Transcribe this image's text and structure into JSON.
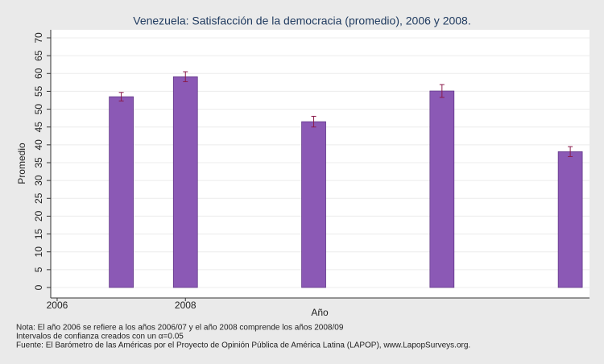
{
  "chart_data": {
    "type": "bar",
    "title": "Venezuela: Satisfacción de la democracia (promedio), 2006 y 2008.",
    "x_label": "Año",
    "y_label": "Promedio",
    "x": [
      2007,
      2008,
      2010,
      2012,
      2014
    ],
    "values": [
      53.5,
      59.1,
      46.5,
      55.1,
      38.1
    ],
    "errors": [
      1.2,
      1.4,
      1.5,
      1.8,
      1.4
    ],
    "color": "#8b59b5",
    "error_color": "#8b1a4a",
    "xlim": [
      2005.9,
      2014.3
    ],
    "xticks": [
      2006,
      2008
    ],
    "ylim": [
      0,
      70
    ],
    "yticks": [
      0,
      5,
      10,
      15,
      20,
      25,
      30,
      35,
      40,
      45,
      50,
      55,
      60,
      65,
      70
    ],
    "grid": true,
    "notes": [
      "Nota: El año 2006 se refiere a los años 2006/07 y el año 2008 comprende los años 2008/09",
      "Intervalos de confianza creados con un α=0.05",
      "Fuente: El Barómetro de las Américas por el Proyecto de Opinión Pública de América Latina (LAPOP), www.LapopSurveys.org."
    ]
  }
}
